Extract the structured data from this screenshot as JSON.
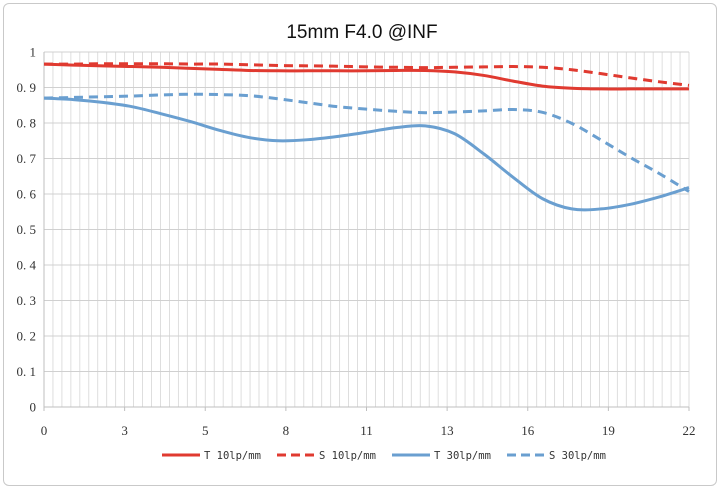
{
  "chart_data": {
    "type": "line",
    "title": "15mm F4.0 @INF",
    "xlabel": "",
    "ylabel": "",
    "xlim": [
      0,
      22
    ],
    "ylim": [
      0,
      1
    ],
    "x_tick_labels": [
      "0",
      "3",
      "5",
      "8",
      "11",
      "13",
      "16",
      "19",
      "22"
    ],
    "y_tick_labels": [
      "0",
      "0. 1",
      "0. 2",
      "0. 3",
      "0. 4",
      "0. 5",
      "0. 6",
      "0. 7",
      "0. 8",
      "0. 9",
      "1"
    ],
    "grid": true,
    "legend_position": "bottom",
    "x": [
      0,
      1,
      2,
      3,
      4,
      5,
      6,
      7,
      8,
      9,
      10,
      11,
      12,
      13,
      14,
      15,
      16,
      17,
      18,
      19,
      20,
      21,
      22
    ],
    "series": [
      {
        "name": "T 10lp/mm",
        "color": "#e03a30",
        "dashed": false,
        "values": [
          0.966,
          0.963,
          0.961,
          0.959,
          0.957,
          0.954,
          0.951,
          0.948,
          0.947,
          0.947,
          0.947,
          0.947,
          0.948,
          0.948,
          0.944,
          0.934,
          0.918,
          0.904,
          0.898,
          0.896,
          0.896,
          0.896,
          0.896
        ]
      },
      {
        "name": "S 10lp/mm",
        "color": "#e03a30",
        "dashed": true,
        "values": [
          0.966,
          0.966,
          0.967,
          0.967,
          0.967,
          0.966,
          0.966,
          0.964,
          0.962,
          0.961,
          0.96,
          0.958,
          0.957,
          0.956,
          0.957,
          0.958,
          0.959,
          0.957,
          0.95,
          0.939,
          0.927,
          0.916,
          0.906
        ]
      },
      {
        "name": "T 30lp/mm",
        "color": "#6a9fd0",
        "dashed": false,
        "values": [
          0.87,
          0.866,
          0.858,
          0.846,
          0.826,
          0.804,
          0.779,
          0.759,
          0.75,
          0.753,
          0.762,
          0.774,
          0.787,
          0.792,
          0.77,
          0.713,
          0.647,
          0.587,
          0.558,
          0.558,
          0.571,
          0.592,
          0.618
        ]
      },
      {
        "name": "S 30lp/mm",
        "color": "#6a9fd0",
        "dashed": true,
        "values": [
          0.87,
          0.872,
          0.874,
          0.876,
          0.879,
          0.881,
          0.88,
          0.877,
          0.868,
          0.857,
          0.846,
          0.839,
          0.833,
          0.829,
          0.831,
          0.834,
          0.838,
          0.83,
          0.799,
          0.752,
          0.703,
          0.657,
          0.607
        ]
      }
    ]
  }
}
